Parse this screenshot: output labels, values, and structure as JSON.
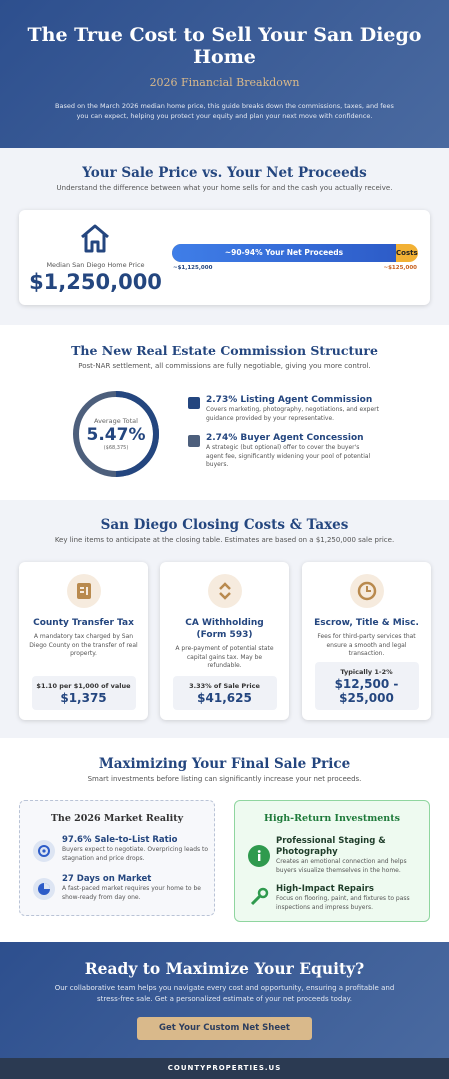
{
  "header": {
    "title": "The True Cost to Sell Your San Diego Home",
    "subtitle": "2026 Financial Breakdown",
    "intro": "Based on the March 2026 median home price, this guide breaks down the commissions, taxes, and fees you can expect, helping you protect your equity and plan your next move with confidence."
  },
  "sale_vs_net": {
    "title": "Your Sale Price vs. Your Net Proceeds",
    "subtitle": "Understand the difference between what your home sells for and the cash you actually receive.",
    "price_label": "Median San Diego Home Price",
    "price": "$1,250,000",
    "bar_net": "~90-94% Your Net Proceeds",
    "bar_costs": "Costs",
    "net_amount": "~$1,125,000",
    "cost_amount": "~$125,000"
  },
  "commission": {
    "title": "The New Real Estate Commission Structure",
    "subtitle": "Post-NAR settlement, all commissions are fully negotiable, giving you more control.",
    "donut_label": "Average Total",
    "donut_value": "5.47%",
    "donut_amount": "($68,375)",
    "items": [
      {
        "title": "2.73% Listing Agent Commission",
        "text": "Covers marketing, photography, negotiations, and expert guidance provided by your representative."
      },
      {
        "title": "2.74% Buyer Agent Concession",
        "text": "A strategic (but optional) offer to cover the buyer's agent fee, significantly widening your pool of potential buyers."
      }
    ]
  },
  "closing_costs": {
    "title": "San Diego Closing Costs & Taxes",
    "subtitle": "Key line items to anticipate at the closing table. Estimates are based on a $1,250,000 sale price.",
    "cards": [
      {
        "title": "County Transfer Tax",
        "text": "A mandatory tax charged by San Diego County on the transfer of real property.",
        "note": "$1.10 per $1,000 of value",
        "amount": "$1,375"
      },
      {
        "title": "CA Withholding (Form 593)",
        "text": "A pre-payment of potential state capital gains tax. May be refundable.",
        "note": "3.33% of Sale Price",
        "amount": "$41,625"
      },
      {
        "title": "Escrow, Title & Misc.",
        "text": "Fees for third-party services that ensure a smooth and legal transaction.",
        "note": "Typically 1-2%",
        "amount": "$12,500 - $25,000"
      }
    ]
  },
  "maximizing": {
    "title": "Maximizing Your Final Sale Price",
    "subtitle": "Smart investments before listing can significantly increase your net proceeds.",
    "market": {
      "title": "The 2026 Market Reality",
      "items": [
        {
          "title": "97.6% Sale-to-List Ratio",
          "text": "Buyers expect to negotiate. Overpricing leads to stagnation and price drops."
        },
        {
          "title": "27 Days on Market",
          "text": "A fast-paced market requires your home to be show-ready from day one."
        }
      ]
    },
    "investments": {
      "title": "High-Return Investments",
      "items": [
        {
          "title": "Professional Staging & Photography",
          "text": "Creates an emotional connection and helps buyers visualize themselves in the home."
        },
        {
          "title": "High-Impact Repairs",
          "text": "Focus on flooring, paint, and fixtures to pass inspections and impress buyers."
        }
      ]
    }
  },
  "cta": {
    "title": "Ready to Maximize Your Equity?",
    "text": "Our collaborative team helps you navigate every cost and opportunity, ensuring a profitable and stress-free sale. Get a personalized estimate of your net proceeds today.",
    "button": "Get Your Custom Net Sheet"
  },
  "footer": {
    "text": "COUNTYPROPERTIES.US"
  }
}
